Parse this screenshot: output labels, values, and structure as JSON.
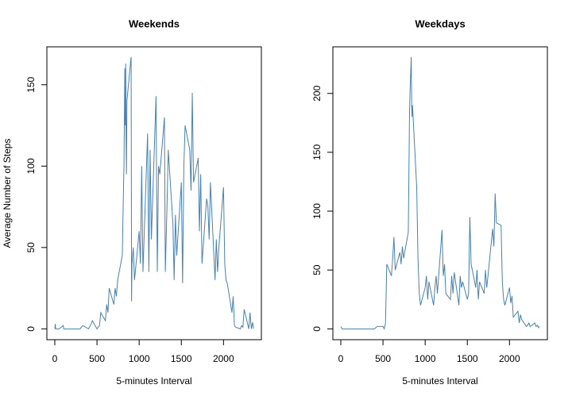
{
  "chart_data": [
    {
      "type": "line",
      "title": "Weekends",
      "x_label": "5-minutes Interval",
      "y_label": "Average Number of Steps",
      "color": "#4682b4",
      "x": [
        0,
        5,
        10,
        50,
        100,
        105,
        200,
        300,
        330,
        400,
        430,
        445,
        500,
        530,
        545,
        600,
        615,
        630,
        645,
        700,
        715,
        730,
        745,
        800,
        815,
        820,
        830,
        835,
        840,
        845,
        850,
        855,
        900,
        905,
        910,
        915,
        930,
        945,
        1000,
        1015,
        1030,
        1045,
        1100,
        1115,
        1130,
        1145,
        1200,
        1215,
        1230,
        1245,
        1300,
        1310,
        1330,
        1345,
        1400,
        1415,
        1430,
        1445,
        1500,
        1515,
        1530,
        1545,
        1600,
        1615,
        1630,
        1645,
        1700,
        1715,
        1730,
        1745,
        1800,
        1815,
        1830,
        1845,
        1900,
        1915,
        1930,
        1945,
        2000,
        2015,
        2030,
        2045,
        2100,
        2115,
        2130,
        2145,
        2200,
        2215,
        2230,
        2245,
        2300,
        2315,
        2330,
        2345,
        2355
      ],
      "values": [
        0,
        3,
        0,
        0,
        2,
        0,
        0,
        0,
        2,
        0,
        3,
        5,
        0,
        2,
        10,
        5,
        15,
        10,
        25,
        15,
        25,
        20,
        30,
        45,
        88,
        100,
        160,
        125,
        163,
        120,
        95,
        140,
        165,
        167,
        17,
        40,
        50,
        30,
        60,
        40,
        100,
        35,
        120,
        35,
        110,
        55,
        143,
        35,
        100,
        95,
        130,
        35,
        75,
        110,
        65,
        30,
        70,
        45,
        90,
        28,
        100,
        125,
        110,
        85,
        145,
        90,
        105,
        60,
        95,
        40,
        80,
        75,
        55,
        90,
        30,
        55,
        35,
        50,
        87,
        40,
        30,
        28,
        10,
        20,
        2,
        1,
        0,
        2,
        1,
        12,
        0,
        10,
        0,
        4,
        0
      ],
      "xlim": [
        -94.2,
        2449.2
      ],
      "ylim": [
        -6.66,
        173.3
      ],
      "xticks": [
        0,
        500,
        1000,
        1500,
        2000
      ],
      "yticks": [
        0,
        50,
        100,
        150
      ]
    },
    {
      "type": "line",
      "title": "Weekdays",
      "x_label": "5-minutes Interval",
      "color": "#4682b4",
      "x": [
        0,
        15,
        100,
        200,
        300,
        400,
        430,
        500,
        515,
        530,
        545,
        600,
        615,
        630,
        645,
        700,
        715,
        730,
        745,
        800,
        815,
        820,
        835,
        840,
        845,
        850,
        900,
        915,
        930,
        945,
        1000,
        1015,
        1030,
        1045,
        1100,
        1115,
        1130,
        1145,
        1200,
        1215,
        1230,
        1245,
        1300,
        1315,
        1330,
        1345,
        1400,
        1415,
        1430,
        1445,
        1500,
        1515,
        1530,
        1545,
        1600,
        1615,
        1630,
        1645,
        1700,
        1715,
        1730,
        1745,
        1800,
        1815,
        1830,
        1845,
        1900,
        1915,
        1930,
        1945,
        2000,
        2015,
        2030,
        2045,
        2100,
        2115,
        2130,
        2145,
        2200,
        2215,
        2230,
        2245,
        2300,
        2315,
        2330,
        2345,
        2355
      ],
      "values": [
        2,
        0,
        0,
        0,
        0,
        0,
        2,
        2,
        0,
        5,
        55,
        45,
        60,
        78,
        50,
        65,
        55,
        70,
        60,
        82,
        185,
        200,
        231,
        190,
        180,
        190,
        120,
        60,
        30,
        20,
        35,
        45,
        25,
        40,
        20,
        35,
        45,
        30,
        84,
        45,
        55,
        30,
        25,
        45,
        30,
        48,
        20,
        45,
        35,
        40,
        25,
        30,
        95,
        55,
        35,
        50,
        25,
        40,
        30,
        50,
        35,
        45,
        85,
        70,
        115,
        90,
        88,
        40,
        25,
        20,
        35,
        22,
        28,
        10,
        15,
        5,
        12,
        8,
        2,
        3,
        5,
        2,
        5,
        2,
        3,
        1,
        2
      ],
      "xlim": [
        -94.2,
        2449.2
      ],
      "ylim": [
        -9.2,
        239.6
      ],
      "xticks": [
        0,
        500,
        1000,
        1500,
        2000
      ],
      "yticks": [
        0,
        50,
        100,
        150,
        200
      ]
    }
  ]
}
